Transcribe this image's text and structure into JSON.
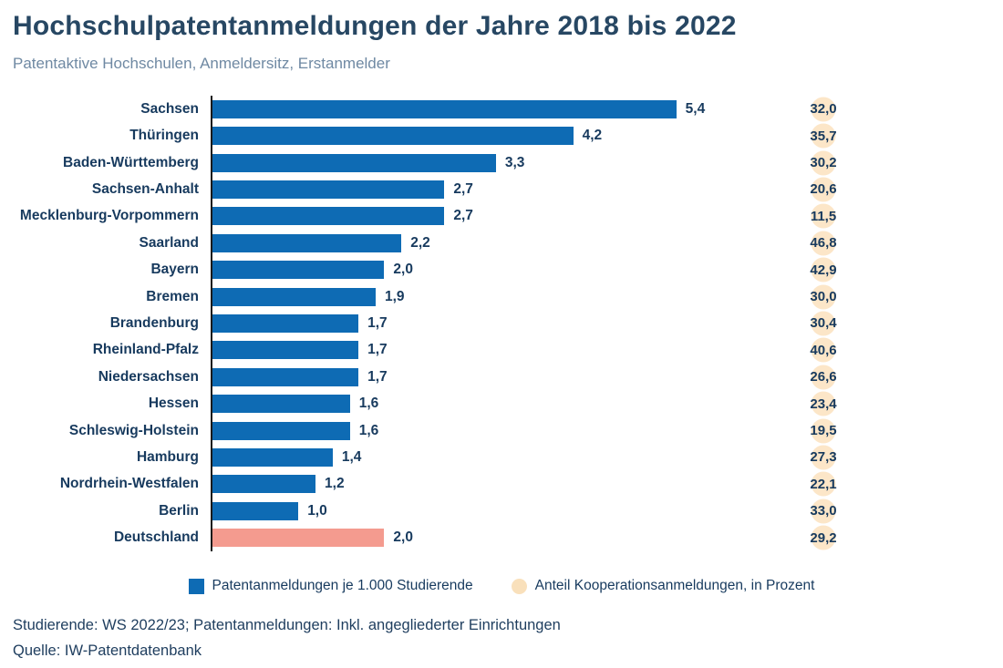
{
  "header": {
    "title": "Hochschulpatentanmeldungen der Jahre 2018 bis 2022",
    "subtitle": "Patentaktive Hochschulen, Anmeldersitz, Erstanmelder"
  },
  "chart_data": {
    "type": "bar",
    "orientation": "horizontal",
    "title": "Hochschulpatentanmeldungen der Jahre 2018 bis 2022",
    "subtitle": "Patentaktive Hochschulen, Anmeldersitz, Erstanmelder",
    "categories": [
      "Sachsen",
      "Thüringen",
      "Baden-Württemberg",
      "Sachsen-Anhalt",
      "Mecklenburg-Vorpommern",
      "Saarland",
      "Bayern",
      "Bremen",
      "Brandenburg",
      "Rheinland-Pfalz",
      "Niedersachsen",
      "Hessen",
      "Schleswig-Holstein",
      "Hamburg",
      "Nordrhein-Westfalen",
      "Berlin",
      "Deutschland"
    ],
    "series": [
      {
        "name": "Patentanmeldungen je 1.000 Studierende",
        "values": [
          5.4,
          4.2,
          3.3,
          2.7,
          2.7,
          2.2,
          2.0,
          1.9,
          1.7,
          1.7,
          1.7,
          1.6,
          1.6,
          1.4,
          1.2,
          1.0,
          2.0
        ],
        "labels": [
          "5,4",
          "4,2",
          "3,3",
          "2,7",
          "2,7",
          "2,2",
          "2,0",
          "1,9",
          "1,7",
          "1,7",
          "1,7",
          "1,6",
          "1,6",
          "1,4",
          "1,2",
          "1,0",
          "2,0"
        ],
        "color": "#0e6bb4",
        "highlight_category": "Deutschland",
        "highlight_color": "#f49b8f"
      },
      {
        "name": "Anteil Kooperationsanmeldungen, in Prozent",
        "values": [
          32.0,
          35.7,
          30.2,
          20.6,
          11.5,
          46.8,
          42.9,
          30.0,
          30.4,
          40.6,
          26.6,
          23.4,
          19.5,
          27.3,
          22.1,
          33.0,
          29.2
        ],
        "labels": [
          "32,0",
          "35,7",
          "30,2",
          "20,6",
          "11,5",
          "46,8",
          "42,9",
          "30,0",
          "30,4",
          "40,6",
          "26,6",
          "23,4",
          "19,5",
          "27,3",
          "22,1",
          "33,0",
          "29,2"
        ],
        "color": "#fce6c8"
      }
    ],
    "xlim": [
      0,
      5.7
    ],
    "grid": false,
    "legend_position": "bottom",
    "axis_color": "#1a1a1a"
  },
  "legend": {
    "items": [
      {
        "label": "Patentanmeldungen je 1.000 Studierende",
        "shape": "square",
        "color": "#0e6bb4"
      },
      {
        "label": "Anteil Kooperationsanmeldungen, in Prozent",
        "shape": "circle",
        "color": "#f9e0bb"
      }
    ]
  },
  "footer": {
    "note": "Studierende: WS 2022/23; Patentanmeldungen: Inkl. angegliederter Einrichtungen",
    "source": "Quelle: IW-Patentdatenbank"
  }
}
